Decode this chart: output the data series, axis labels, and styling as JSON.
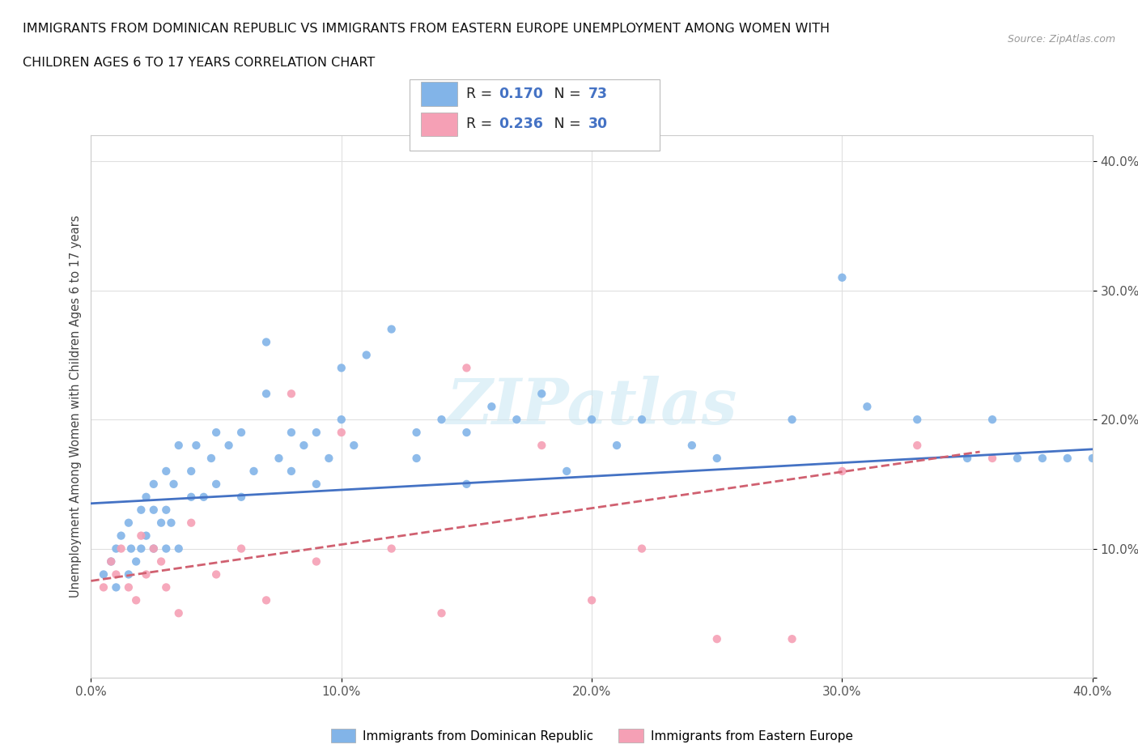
{
  "title_line1": "IMMIGRANTS FROM DOMINICAN REPUBLIC VS IMMIGRANTS FROM EASTERN EUROPE UNEMPLOYMENT AMONG WOMEN WITH",
  "title_line2": "CHILDREN AGES 6 TO 17 YEARS CORRELATION CHART",
  "source": "Source: ZipAtlas.com",
  "ylabel": "Unemployment Among Women with Children Ages 6 to 17 years",
  "xlim": [
    0.0,
    0.4
  ],
  "ylim": [
    0.0,
    0.42
  ],
  "xticks": [
    0.0,
    0.1,
    0.2,
    0.3,
    0.4
  ],
  "yticks": [
    0.0,
    0.1,
    0.2,
    0.3,
    0.4
  ],
  "xticklabels": [
    "0.0%",
    "10.0%",
    "20.0%",
    "30.0%",
    "40.0%"
  ],
  "yticklabels": [
    "",
    "10.0%",
    "20.0%",
    "30.0%",
    "40.0%"
  ],
  "R_blue": 0.17,
  "N_blue": 73,
  "R_pink": 0.236,
  "N_pink": 30,
  "color_blue": "#82b4e8",
  "color_pink": "#f5a0b5",
  "trend_color_blue": "#4472c4",
  "trend_color_pink": "#d06070",
  "watermark": "ZIPatlas",
  "legend_label_blue": "Immigrants from Dominican Republic",
  "legend_label_pink": "Immigrants from Eastern Europe",
  "blue_scatter_x": [
    0.005,
    0.008,
    0.01,
    0.01,
    0.012,
    0.015,
    0.015,
    0.016,
    0.018,
    0.02,
    0.02,
    0.022,
    0.022,
    0.025,
    0.025,
    0.025,
    0.028,
    0.03,
    0.03,
    0.03,
    0.032,
    0.033,
    0.035,
    0.035,
    0.04,
    0.04,
    0.042,
    0.045,
    0.048,
    0.05,
    0.05,
    0.055,
    0.06,
    0.06,
    0.065,
    0.07,
    0.07,
    0.075,
    0.08,
    0.08,
    0.085,
    0.09,
    0.09,
    0.095,
    0.1,
    0.1,
    0.105,
    0.11,
    0.12,
    0.13,
    0.13,
    0.14,
    0.15,
    0.15,
    0.16,
    0.17,
    0.18,
    0.19,
    0.2,
    0.21,
    0.22,
    0.24,
    0.25,
    0.28,
    0.3,
    0.31,
    0.33,
    0.35,
    0.36,
    0.37,
    0.38,
    0.39,
    0.4
  ],
  "blue_scatter_y": [
    0.08,
    0.09,
    0.07,
    0.1,
    0.11,
    0.08,
    0.12,
    0.1,
    0.09,
    0.1,
    0.13,
    0.11,
    0.14,
    0.1,
    0.13,
    0.15,
    0.12,
    0.1,
    0.13,
    0.16,
    0.12,
    0.15,
    0.1,
    0.18,
    0.14,
    0.16,
    0.18,
    0.14,
    0.17,
    0.15,
    0.19,
    0.18,
    0.14,
    0.19,
    0.16,
    0.26,
    0.22,
    0.17,
    0.19,
    0.16,
    0.18,
    0.15,
    0.19,
    0.17,
    0.24,
    0.2,
    0.18,
    0.25,
    0.27,
    0.19,
    0.17,
    0.2,
    0.19,
    0.15,
    0.21,
    0.2,
    0.22,
    0.16,
    0.2,
    0.18,
    0.2,
    0.18,
    0.17,
    0.2,
    0.31,
    0.21,
    0.2,
    0.17,
    0.2,
    0.17,
    0.17,
    0.17,
    0.17
  ],
  "pink_scatter_x": [
    0.005,
    0.008,
    0.01,
    0.012,
    0.015,
    0.018,
    0.02,
    0.022,
    0.025,
    0.028,
    0.03,
    0.035,
    0.04,
    0.05,
    0.06,
    0.07,
    0.08,
    0.09,
    0.1,
    0.12,
    0.14,
    0.15,
    0.18,
    0.2,
    0.22,
    0.25,
    0.28,
    0.3,
    0.33,
    0.36
  ],
  "pink_scatter_y": [
    0.07,
    0.09,
    0.08,
    0.1,
    0.07,
    0.06,
    0.11,
    0.08,
    0.1,
    0.09,
    0.07,
    0.05,
    0.12,
    0.08,
    0.1,
    0.06,
    0.22,
    0.09,
    0.19,
    0.1,
    0.05,
    0.24,
    0.18,
    0.06,
    0.1,
    0.03,
    0.03,
    0.16,
    0.18,
    0.17
  ]
}
